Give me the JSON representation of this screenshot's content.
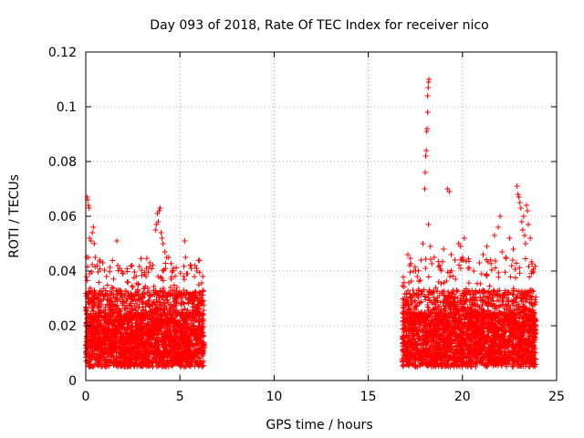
{
  "chart_data": {
    "type": "scatter",
    "title": "Day 093 of 2018, Rate Of TEC Index for receiver nico",
    "xlabel": "GPS time / hours",
    "ylabel": "ROTI / TECUs",
    "xlim": [
      0,
      25
    ],
    "ylim": [
      0,
      0.12
    ],
    "x_ticks": [
      0,
      5,
      10,
      15,
      20,
      25
    ],
    "x_tick_labels": [
      "0",
      "5",
      "10",
      "15",
      "20",
      "25"
    ],
    "y_ticks": [
      0,
      0.02,
      0.04,
      0.06,
      0.08,
      0.1,
      0.12
    ],
    "y_tick_labels": [
      "0",
      "0.02",
      "0.04",
      "0.06",
      "0.08",
      "0.1",
      "0.12"
    ],
    "grid": true,
    "marker": "+",
    "color": "#ff0000",
    "series": [
      {
        "name": "ROTI",
        "observation_windows_hours": [
          [
            0.0,
            6.3
          ],
          [
            16.8,
            23.9
          ]
        ],
        "typical_range": [
          0.005,
          0.025
        ],
        "points": [
          {
            "x": 0.08,
            "y": 0.067
          },
          {
            "x": 0.1,
            "y": 0.066
          },
          {
            "x": 0.14,
            "y": 0.064
          },
          {
            "x": 0.18,
            "y": 0.063
          },
          {
            "x": 0.2,
            "y": 0.052
          },
          {
            "x": 0.28,
            "y": 0.051
          },
          {
            "x": 0.35,
            "y": 0.054
          },
          {
            "x": 0.4,
            "y": 0.056
          },
          {
            "x": 0.45,
            "y": 0.05
          },
          {
            "x": 0.5,
            "y": 0.045
          },
          {
            "x": 0.6,
            "y": 0.042
          },
          {
            "x": 0.75,
            "y": 0.044
          },
          {
            "x": 0.9,
            "y": 0.043
          },
          {
            "x": 1.1,
            "y": 0.038
          },
          {
            "x": 1.4,
            "y": 0.034
          },
          {
            "x": 1.65,
            "y": 0.051
          },
          {
            "x": 1.7,
            "y": 0.042
          },
          {
            "x": 1.8,
            "y": 0.041
          },
          {
            "x": 1.9,
            "y": 0.04
          },
          {
            "x": 2.2,
            "y": 0.036
          },
          {
            "x": 2.5,
            "y": 0.034
          },
          {
            "x": 2.8,
            "y": 0.035
          },
          {
            "x": 3.2,
            "y": 0.038
          },
          {
            "x": 3.4,
            "y": 0.043
          },
          {
            "x": 3.7,
            "y": 0.055
          },
          {
            "x": 3.75,
            "y": 0.057
          },
          {
            "x": 3.8,
            "y": 0.061
          },
          {
            "x": 3.85,
            "y": 0.058
          },
          {
            "x": 3.9,
            "y": 0.062
          },
          {
            "x": 3.95,
            "y": 0.063
          },
          {
            "x": 4.0,
            "y": 0.054
          },
          {
            "x": 4.05,
            "y": 0.052
          },
          {
            "x": 4.1,
            "y": 0.05
          },
          {
            "x": 4.2,
            "y": 0.047
          },
          {
            "x": 4.3,
            "y": 0.045
          },
          {
            "x": 4.1,
            "y": 0.04
          },
          {
            "x": 4.5,
            "y": 0.034
          },
          {
            "x": 4.8,
            "y": 0.031
          },
          {
            "x": 5.2,
            "y": 0.038
          },
          {
            "x": 5.25,
            "y": 0.051
          },
          {
            "x": 5.3,
            "y": 0.045
          },
          {
            "x": 5.4,
            "y": 0.039
          },
          {
            "x": 5.6,
            "y": 0.041
          },
          {
            "x": 5.8,
            "y": 0.042
          },
          {
            "x": 5.9,
            "y": 0.04
          },
          {
            "x": 6.0,
            "y": 0.035
          },
          {
            "x": 17.1,
            "y": 0.046
          },
          {
            "x": 17.2,
            "y": 0.042
          },
          {
            "x": 17.4,
            "y": 0.04
          },
          {
            "x": 17.6,
            "y": 0.038
          },
          {
            "x": 17.8,
            "y": 0.044
          },
          {
            "x": 17.9,
            "y": 0.05
          },
          {
            "x": 18.0,
            "y": 0.07
          },
          {
            "x": 18.02,
            "y": 0.076
          },
          {
            "x": 18.05,
            "y": 0.082
          },
          {
            "x": 18.08,
            "y": 0.084
          },
          {
            "x": 18.1,
            "y": 0.091
          },
          {
            "x": 18.12,
            "y": 0.092
          },
          {
            "x": 18.15,
            "y": 0.098
          },
          {
            "x": 18.15,
            "y": 0.104
          },
          {
            "x": 18.18,
            "y": 0.107
          },
          {
            "x": 18.2,
            "y": 0.109
          },
          {
            "x": 18.22,
            "y": 0.11
          },
          {
            "x": 18.2,
            "y": 0.057
          },
          {
            "x": 18.3,
            "y": 0.049
          },
          {
            "x": 18.5,
            "y": 0.045
          },
          {
            "x": 18.8,
            "y": 0.042
          },
          {
            "x": 19.0,
            "y": 0.048
          },
          {
            "x": 19.2,
            "y": 0.07
          },
          {
            "x": 19.3,
            "y": 0.069
          },
          {
            "x": 19.4,
            "y": 0.046
          },
          {
            "x": 19.6,
            "y": 0.044
          },
          {
            "x": 19.8,
            "y": 0.05
          },
          {
            "x": 19.9,
            "y": 0.049
          },
          {
            "x": 20.1,
            "y": 0.052
          },
          {
            "x": 20.3,
            "y": 0.041
          },
          {
            "x": 20.6,
            "y": 0.04
          },
          {
            "x": 20.9,
            "y": 0.043
          },
          {
            "x": 21.1,
            "y": 0.046
          },
          {
            "x": 21.3,
            "y": 0.049
          },
          {
            "x": 21.5,
            "y": 0.044
          },
          {
            "x": 21.7,
            "y": 0.053
          },
          {
            "x": 21.9,
            "y": 0.056
          },
          {
            "x": 22.0,
            "y": 0.06
          },
          {
            "x": 22.1,
            "y": 0.047
          },
          {
            "x": 22.3,
            "y": 0.045
          },
          {
            "x": 22.5,
            "y": 0.052
          },
          {
            "x": 22.7,
            "y": 0.048
          },
          {
            "x": 22.9,
            "y": 0.071
          },
          {
            "x": 22.95,
            "y": 0.068
          },
          {
            "x": 23.0,
            "y": 0.067
          },
          {
            "x": 23.05,
            "y": 0.065
          },
          {
            "x": 23.1,
            "y": 0.063
          },
          {
            "x": 23.15,
            "y": 0.058
          },
          {
            "x": 23.2,
            "y": 0.055
          },
          {
            "x": 23.25,
            "y": 0.06
          },
          {
            "x": 23.3,
            "y": 0.053
          },
          {
            "x": 23.35,
            "y": 0.05
          },
          {
            "x": 23.4,
            "y": 0.064
          },
          {
            "x": 23.45,
            "y": 0.062
          },
          {
            "x": 23.5,
            "y": 0.057
          },
          {
            "x": 23.6,
            "y": 0.052
          },
          {
            "x": 23.7,
            "y": 0.04
          }
        ]
      }
    ]
  }
}
